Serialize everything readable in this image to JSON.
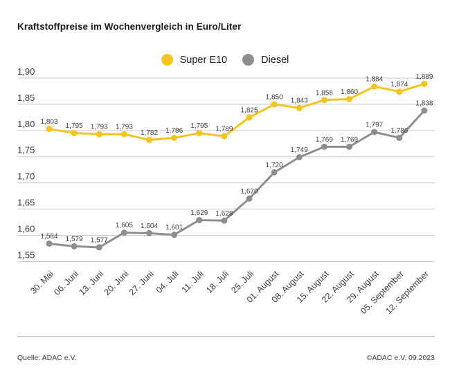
{
  "title": "Kraftstoffpreise im Wochenvergleich in Euro/Liter",
  "footer": {
    "source": "Quelle: ADAC e.V.",
    "copyright": "©ADAC e.V. 09.2023"
  },
  "colors": {
    "grid": "#c9c9c9",
    "axis_text": "#3c3c3a",
    "label_text": "#3c3c3a",
    "title_text": "#1d1d1b",
    "divider": "#969696",
    "background": "#ffffff",
    "super_e10": "#f5c41e",
    "diesel": "#8e8e8e"
  },
  "chart_data": {
    "type": "line",
    "title": "Kraftstoffpreise im Wochenvergleich in Euro/Liter",
    "xlabel": "",
    "ylabel": "",
    "grid": true,
    "legend_position": "top-center",
    "ylim": [
      1.55,
      1.9
    ],
    "ytick_step": 0.05,
    "yticks": [
      "1,90",
      "1,85",
      "1,80",
      "1,75",
      "1,70",
      "1,65",
      "1,60",
      "1,55"
    ],
    "categories": [
      "30. Mai",
      "06. Juni",
      "13. Juni",
      "20. Juni",
      "27. Juni",
      "04. Juli",
      "11. Juli",
      "18. Juli",
      "25. Juli",
      "01. August",
      "08. August",
      "15. August",
      "22. August",
      "29. August",
      "05. September",
      "12. September"
    ],
    "series": [
      {
        "name": "Super E10",
        "color": "#f5c41e",
        "values": [
          1.803,
          1.795,
          1.793,
          1.793,
          1.782,
          1.786,
          1.795,
          1.789,
          1.825,
          1.85,
          1.843,
          1.858,
          1.86,
          1.884,
          1.874,
          1.889
        ],
        "labels": [
          "1,803",
          "1,795",
          "1,793",
          "1,793",
          "1,782",
          "1,786",
          "1,795",
          "1,789",
          "1,825",
          "1,850",
          "1,843",
          "1,858",
          "1,860",
          "1,884",
          "1,874",
          "1,889"
        ]
      },
      {
        "name": "Diesel",
        "color": "#8e8e8e",
        "values": [
          1.584,
          1.579,
          1.577,
          1.605,
          1.604,
          1.601,
          1.629,
          1.628,
          1.67,
          1.72,
          1.749,
          1.769,
          1.769,
          1.797,
          1.786,
          1.838
        ],
        "labels": [
          "1,584",
          "1,579",
          "1,577",
          "1,605",
          "1,604",
          "1,601",
          "1,629",
          "1,628",
          "1,670",
          "1,720",
          "1,749",
          "1,769",
          "1,769",
          "1,797",
          "1,786",
          "1,838"
        ]
      }
    ]
  }
}
